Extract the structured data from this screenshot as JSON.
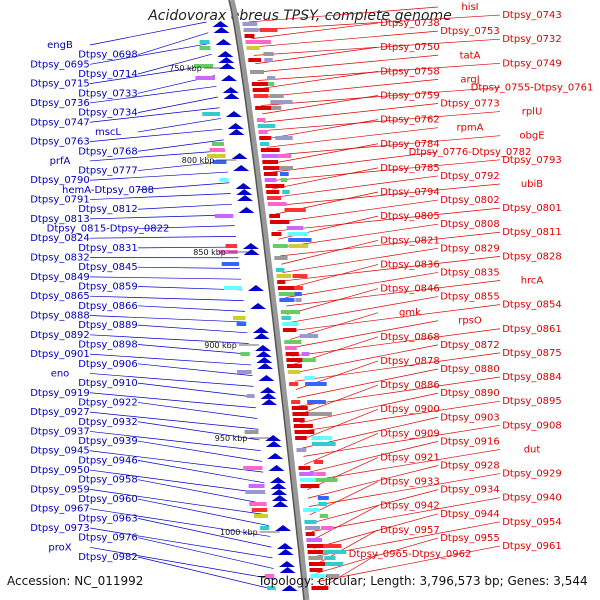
{
  "title": "Acidovorax ebreus TPSY, complete genome",
  "footer": {
    "accession": "Accession: NC_011992",
    "topology": "Topology: circular; Length: 3,796,573 bp; Genes: 3,544"
  },
  "colors": {
    "left_genes": "#0000cc",
    "right_genes": "#dd0000",
    "backbone": "#888888"
  },
  "kbp_markers": [
    "750 kbp",
    "800 kbp",
    "850 kbp",
    "900 kbp",
    "950 kbp",
    "1000 kbp"
  ],
  "left_labels": [
    "engB",
    "Dtpsy_0698",
    "Dtpsy_0695",
    "Dtpsy_0714",
    "Dtpsy_0715",
    "Dtpsy_0733",
    "Dtpsy_0736",
    "Dtpsy_0734",
    "Dtpsy_0747",
    "mscL",
    "Dtpsy_0763",
    "Dtpsy_0768",
    "prfA",
    "Dtpsy_0777",
    "Dtpsy_0790",
    "hemA-Dtpsy_0788",
    "Dtpsy_0791",
    "Dtpsy_0812",
    "Dtpsy_0813",
    "Dtpsy_0815-Dtpsy_0822",
    "Dtpsy_0824",
    "Dtpsy_0831",
    "Dtpsy_0832",
    "Dtpsy_0845",
    "Dtpsy_0849",
    "Dtpsy_0859",
    "Dtpsy_0865",
    "Dtpsy_0866",
    "Dtpsy_0888",
    "Dtpsy_0889",
    "Dtpsy_0892",
    "Dtpsy_0898",
    "Dtpsy_0901",
    "Dtpsy_0906",
    "eno",
    "Dtpsy_0910",
    "Dtpsy_0919",
    "Dtpsy_0922",
    "Dtpsy_0927",
    "Dtpsy_0932",
    "Dtpsy_0937",
    "Dtpsy_0939",
    "Dtpsy_0945",
    "Dtpsy_0946",
    "Dtpsy_0950",
    "Dtpsy_0958",
    "Dtpsy_0959",
    "Dtpsy_0960",
    "Dtpsy_0967",
    "Dtpsy_0963",
    "Dtpsy_0973",
    "Dtpsy_0976",
    "proX",
    "Dtpsy_0982"
  ],
  "right_labels": [
    "hisI",
    "Dtpsy_0743",
    "Dtpsy_0738",
    "Dtpsy_0753",
    "Dtpsy_0732",
    "Dtpsy_0750",
    "tatA",
    "Dtpsy_0749",
    "Dtpsy_0758",
    "argJ",
    "Dtpsy_0755-Dtpsy_0761",
    "Dtpsy_0759",
    "Dtpsy_0773",
    "rplU",
    "Dtpsy_0762",
    "rpmA",
    "obgE",
    "Dtpsy_0784",
    "Dtpsy_0776-Dtpsy_0782",
    "Dtpsy_0793",
    "Dtpsy_0785",
    "Dtpsy_0792",
    "ubiB",
    "Dtpsy_0794",
    "Dtpsy_0802",
    "Dtpsy_0801",
    "Dtpsy_0805",
    "Dtpsy_0808",
    "Dtpsy_0811",
    "Dtpsy_0821",
    "Dtpsy_0829",
    "Dtpsy_0828",
    "Dtpsy_0836",
    "Dtpsy_0835",
    "hrcA",
    "Dtpsy_0846",
    "Dtpsy_0855",
    "Dtpsy_0854",
    "gmk",
    "rpsO",
    "Dtpsy_0861",
    "Dtpsy_0868",
    "Dtpsy_0872",
    "Dtpsy_0875",
    "Dtpsy_0878",
    "Dtpsy_0880",
    "Dtpsy_0884",
    "Dtpsy_0886",
    "Dtpsy_0890",
    "Dtpsy_0895",
    "Dtpsy_0900",
    "Dtpsy_0903",
    "Dtpsy_0908",
    "Dtpsy_0909",
    "Dtpsy_0916",
    "dut",
    "Dtpsy_0921",
    "Dtpsy_0928",
    "Dtpsy_0929",
    "Dtpsy_0933",
    "Dtpsy_0934",
    "Dtpsy_0940",
    "Dtpsy_0942",
    "Dtpsy_0944",
    "Dtpsy_0954",
    "Dtpsy_0957",
    "Dtpsy_0955",
    "Dtpsy_0961",
    "Dtpsy_0965-Dtpsy_0962"
  ]
}
